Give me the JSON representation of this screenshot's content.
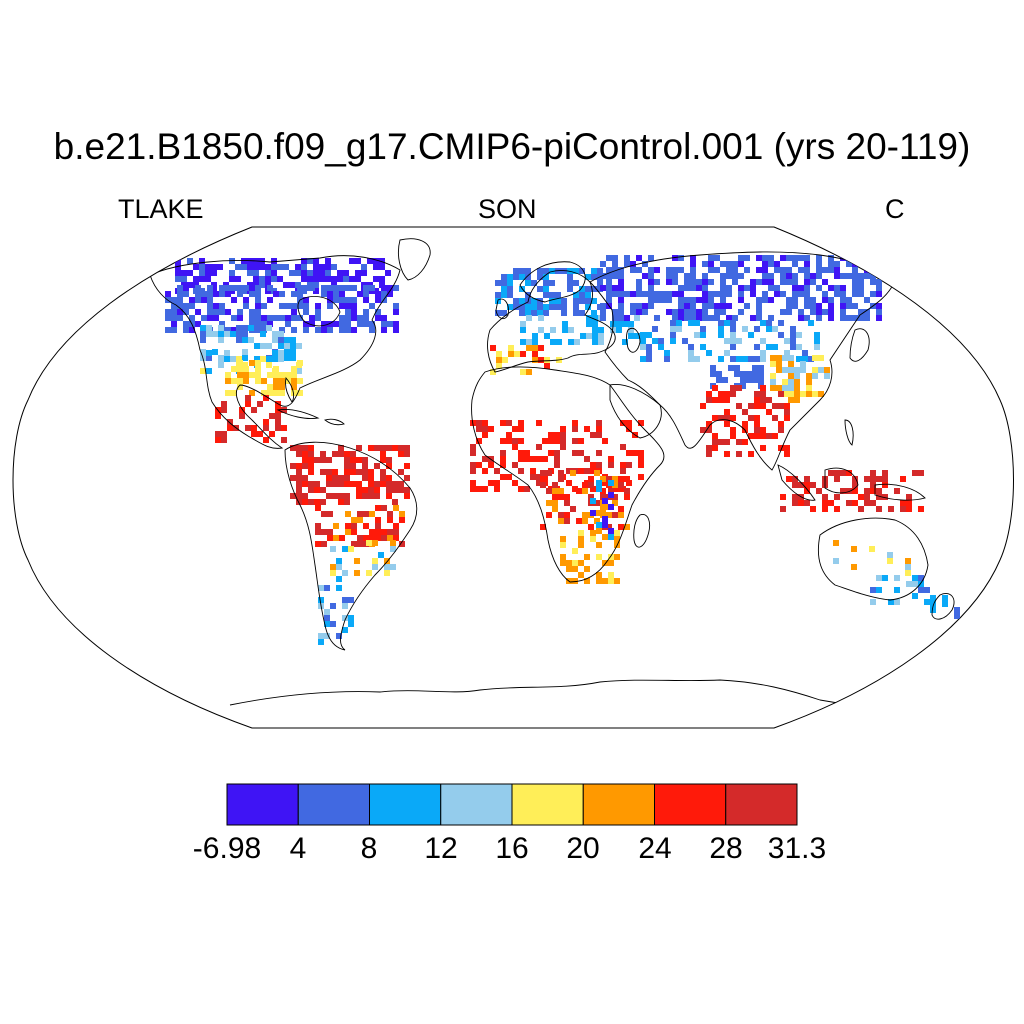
{
  "title": "b.e21.B1850.f09_g17.CMIP6-piControl.001 (yrs 20-119)",
  "variable": "TLAKE",
  "season": "SON",
  "units": "C",
  "colorbar": {
    "labels": [
      "-6.98",
      "4",
      "8",
      "12",
      "16",
      "20",
      "24",
      "28",
      "31.3"
    ],
    "colors": [
      "#3f14f5",
      "#4169e1",
      "#0aa9f8",
      "#94ccec",
      "#ffee58",
      "#ff9900",
      "#ff1a0a",
      "#d42a2a"
    ]
  },
  "colors": {
    "coast": "#000000",
    "background": "#ffffff"
  }
}
